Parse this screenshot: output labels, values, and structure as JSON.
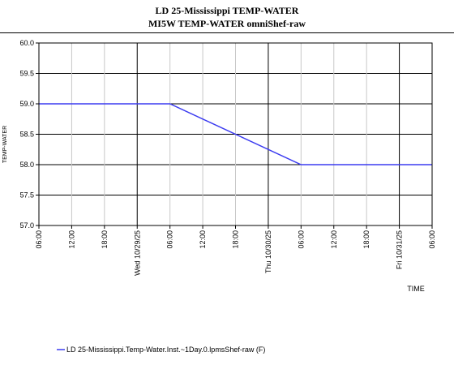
{
  "chart_data": {
    "type": "line",
    "title": "LD 25-Mississippi TEMP-WATER",
    "subtitle": "MI5W TEMP-WATER omniShef-raw",
    "ylabel": "TEMP-WATER",
    "xlabel": "TIME",
    "ylim": [
      57.0,
      60.0
    ],
    "yticks": [
      "60.0",
      "59.5",
      "59.0",
      "58.5",
      "58.0",
      "57.5",
      "57.0"
    ],
    "xrange_hours": [
      0,
      60
    ],
    "xticks": [
      {
        "hour": 0,
        "label": "06:00",
        "major": false
      },
      {
        "hour": 6,
        "label": "12:00",
        "major": false
      },
      {
        "hour": 12,
        "label": "18:00",
        "major": false
      },
      {
        "hour": 18,
        "label": "Wed 10/29/25",
        "major": true
      },
      {
        "hour": 24,
        "label": "06:00",
        "major": false
      },
      {
        "hour": 30,
        "label": "12:00",
        "major": false
      },
      {
        "hour": 36,
        "label": "18:00",
        "major": false
      },
      {
        "hour": 42,
        "label": "Thu 10/30/25",
        "major": true
      },
      {
        "hour": 48,
        "label": "06:00",
        "major": false
      },
      {
        "hour": 54,
        "label": "12:00",
        "major": false
      },
      {
        "hour": 60,
        "label": "18:00",
        "major": false
      },
      {
        "hour": 66,
        "label": "Fri 10/31/25",
        "major": true
      },
      {
        "hour": 72,
        "label": "06:00",
        "major": false
      }
    ],
    "xmax_hours": 72,
    "grid": true,
    "legend_position": "bottom-left",
    "series": [
      {
        "name": "LD 25-Mississippi.Temp-Water.Inst.~1Day.0.lpmsShef-raw (F)",
        "color": "#3b3bf0",
        "x_hours": [
          0,
          24,
          48,
          72
        ],
        "values": [
          59.0,
          59.0,
          58.0,
          58.0
        ]
      }
    ]
  }
}
